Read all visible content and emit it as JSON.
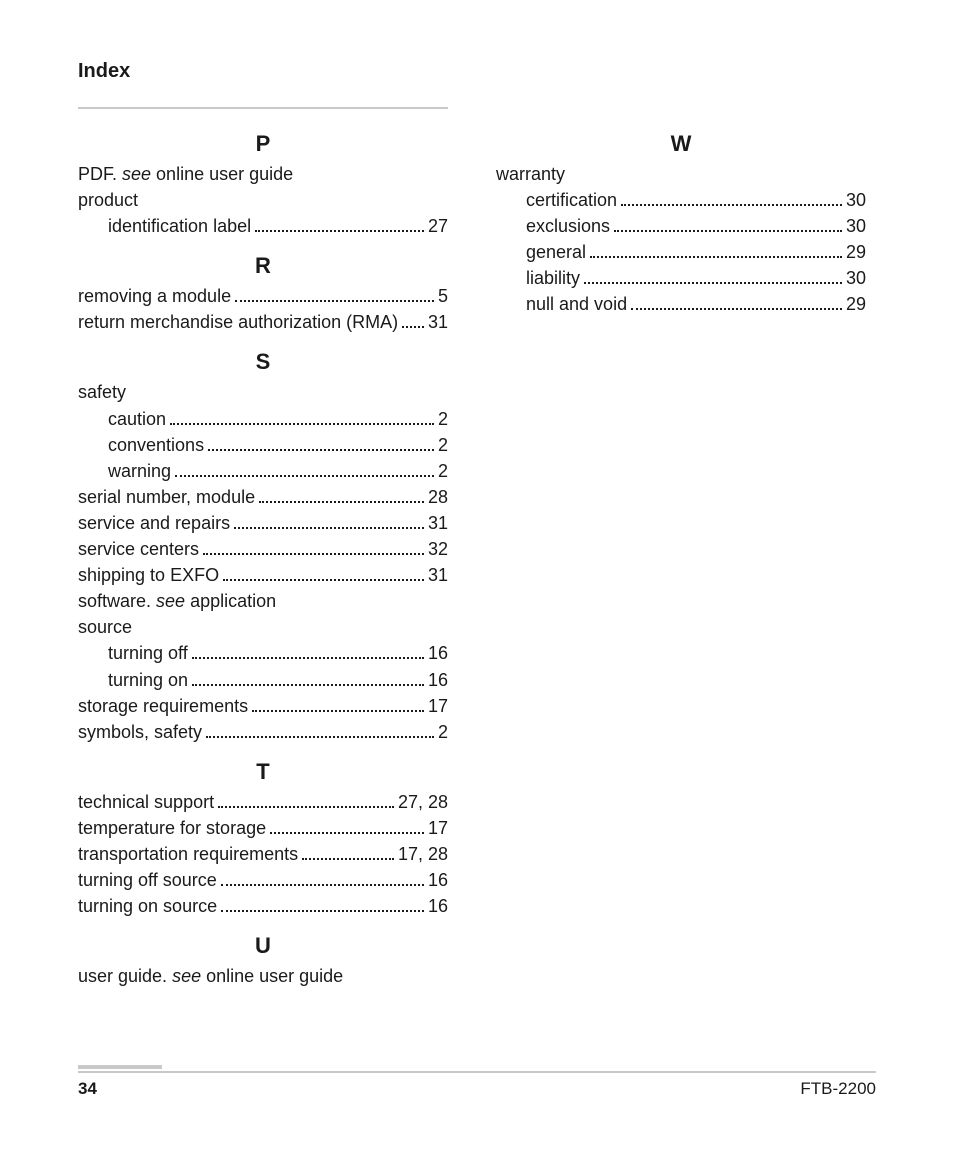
{
  "title": "Index",
  "footer": {
    "page_number": "34",
    "doc_id": "FTB-2200"
  },
  "columns": [
    {
      "sections": [
        {
          "letter": "P",
          "items": [
            {
              "type": "plain",
              "segments": [
                {
                  "t": "PDF. "
                },
                {
                  "t": "see",
                  "i": true
                },
                {
                  "t": " online user guide"
                }
              ]
            },
            {
              "type": "plain",
              "segments": [
                {
                  "t": "product"
                }
              ]
            },
            {
              "type": "sub",
              "label": "identification label",
              "page": "27"
            }
          ]
        },
        {
          "letter": "R",
          "items": [
            {
              "type": "entry",
              "label": "removing a module",
              "page": "5"
            },
            {
              "type": "entry",
              "label": "return merchandise authorization (RMA)",
              "page": "31"
            }
          ]
        },
        {
          "letter": "S",
          "items": [
            {
              "type": "plain",
              "segments": [
                {
                  "t": "safety"
                }
              ]
            },
            {
              "type": "sub",
              "label": "caution",
              "page": "2"
            },
            {
              "type": "sub",
              "label": "conventions",
              "page": "2"
            },
            {
              "type": "sub",
              "label": "warning",
              "page": "2"
            },
            {
              "type": "entry",
              "label": "serial number, module",
              "page": "28"
            },
            {
              "type": "entry",
              "label": "service and repairs",
              "page": "31"
            },
            {
              "type": "entry",
              "label": "service centers",
              "page": "32"
            },
            {
              "type": "entry",
              "label": "shipping to EXFO",
              "page": "31"
            },
            {
              "type": "plain",
              "segments": [
                {
                  "t": "software. "
                },
                {
                  "t": "see",
                  "i": true
                },
                {
                  "t": " application"
                }
              ]
            },
            {
              "type": "plain",
              "segments": [
                {
                  "t": "source"
                }
              ]
            },
            {
              "type": "sub",
              "label": "turning off",
              "page": "16"
            },
            {
              "type": "sub",
              "label": "turning on",
              "page": "16"
            },
            {
              "type": "entry",
              "label": "storage requirements",
              "page": "17"
            },
            {
              "type": "entry",
              "label": "symbols, safety",
              "page": "2"
            }
          ]
        },
        {
          "letter": "T",
          "items": [
            {
              "type": "entry",
              "label": "technical support",
              "page": "27, 28"
            },
            {
              "type": "entry",
              "label": "temperature for storage",
              "page": "17"
            },
            {
              "type": "entry",
              "label": "transportation requirements",
              "page": "17, 28"
            },
            {
              "type": "entry",
              "label": "turning off source",
              "page": "16"
            },
            {
              "type": "entry",
              "label": "turning on source",
              "page": "16"
            }
          ]
        },
        {
          "letter": "U",
          "items": [
            {
              "type": "plain",
              "segments": [
                {
                  "t": "user guide. "
                },
                {
                  "t": "see",
                  "i": true
                },
                {
                  "t": " online user guide"
                }
              ]
            }
          ]
        }
      ]
    },
    {
      "sections": [
        {
          "letter": "W",
          "items": [
            {
              "type": "plain",
              "segments": [
                {
                  "t": "warranty"
                }
              ]
            },
            {
              "type": "sub",
              "label": "certification",
              "page": "30"
            },
            {
              "type": "sub",
              "label": "exclusions",
              "page": "30"
            },
            {
              "type": "sub",
              "label": "general",
              "page": "29"
            },
            {
              "type": "sub",
              "label": "liability",
              "page": "30"
            },
            {
              "type": "sub",
              "label": "null and void",
              "page": "29"
            }
          ]
        }
      ]
    }
  ]
}
